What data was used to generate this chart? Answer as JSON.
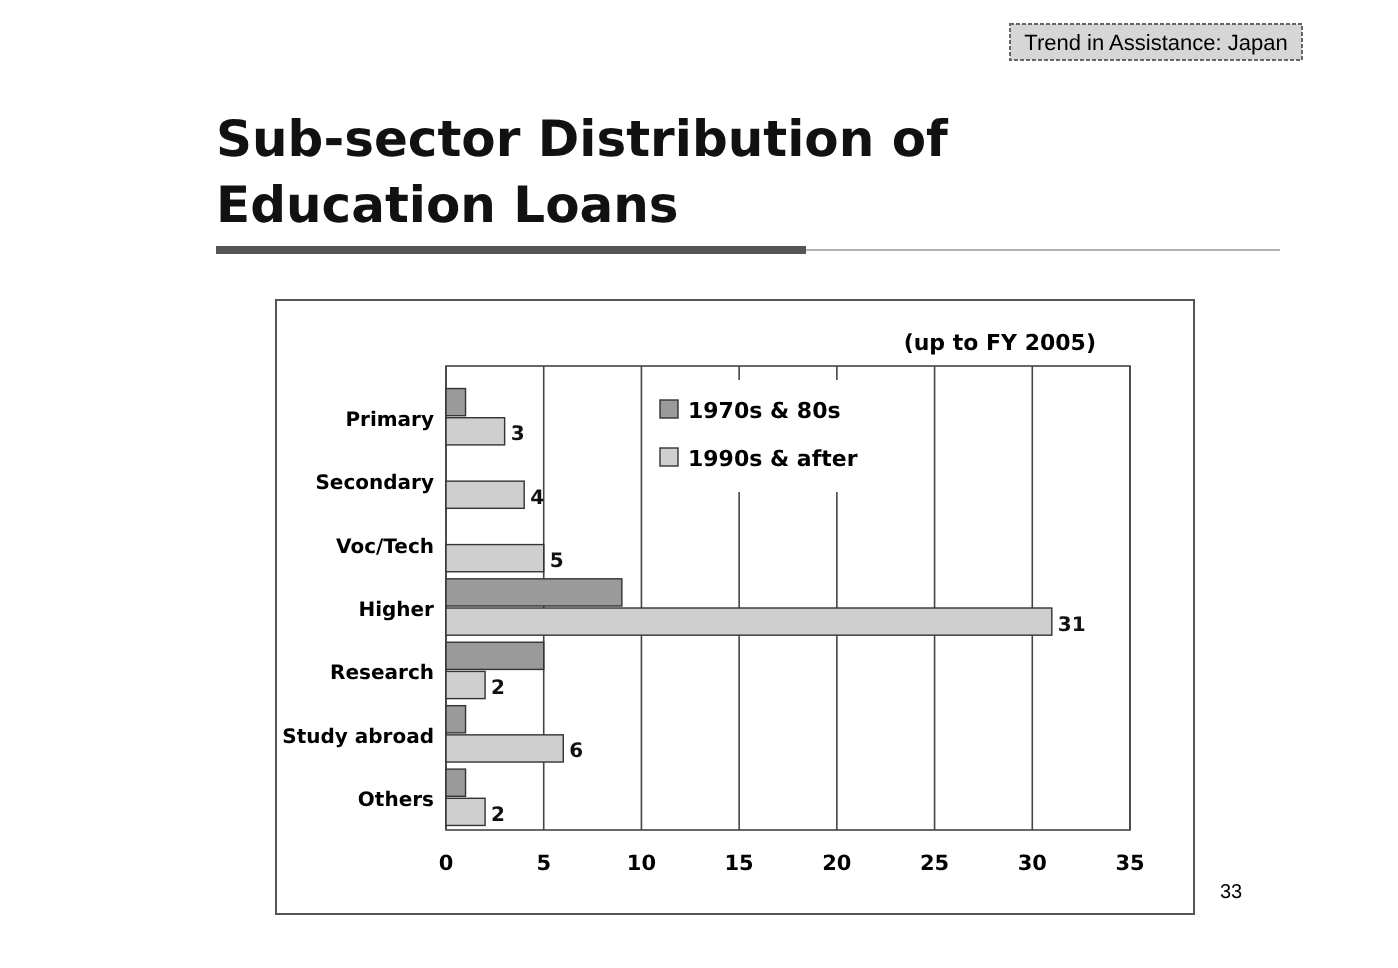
{
  "chart_data": {
    "type": "bar",
    "orientation": "horizontal",
    "title": "Sub-sector Distribution of Education Loans",
    "subtitle": "(up to FY 2005)",
    "annotations": [
      "Trend in Assistance: Japan",
      "33"
    ],
    "categories": [
      "Primary",
      "Secondary",
      "Voc/Tech",
      "Higher",
      "Research",
      "Study abroad",
      "Others"
    ],
    "series": [
      {
        "name": "1970s & 80s",
        "color": "#9a9a9a",
        "values": [
          1,
          0,
          0,
          9,
          5,
          1,
          1
        ]
      },
      {
        "name": "1990s & after",
        "color": "#cfcfcf",
        "values": [
          3,
          4,
          5,
          31,
          2,
          6,
          2
        ],
        "value_labels": [
          "3",
          "4",
          "5",
          "31",
          "2",
          "6",
          "2"
        ]
      }
    ],
    "xlim": [
      0,
      35
    ],
    "xticks": [
      0,
      5,
      10,
      15,
      20,
      25,
      30,
      35
    ],
    "grid": "x",
    "legend": "top"
  }
}
